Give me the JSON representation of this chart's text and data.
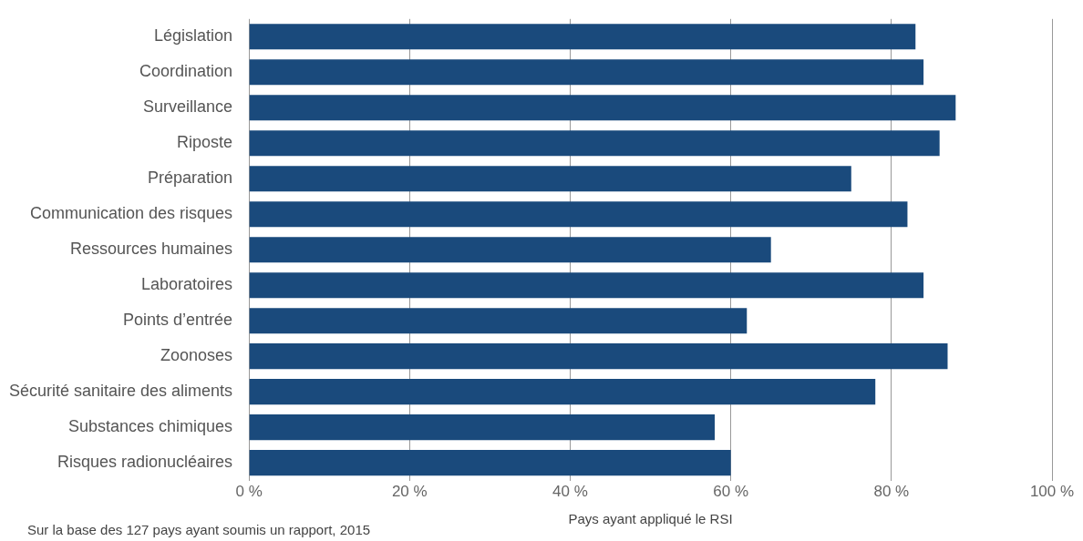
{
  "chart_data": {
    "type": "bar",
    "orientation": "horizontal",
    "categories": [
      "Législation",
      "Coordination",
      "Surveillance",
      "Riposte",
      "Préparation",
      "Communication des risques",
      "Ressources humaines",
      "Laboratoires",
      "Points d’entrée",
      "Zoonoses",
      "Sécurité sanitaire des aliments",
      "Substances chimiques",
      "Risques radionucléaires"
    ],
    "values": [
      83,
      84,
      88,
      86,
      75,
      82,
      65,
      84,
      62,
      87,
      78,
      58,
      60
    ],
    "color": "#1a4a7c",
    "xlim": [
      0,
      100
    ],
    "xticks": [
      {
        "value": 0,
        "label": "0 %"
      },
      {
        "value": 20,
        "label": "20 %"
      },
      {
        "value": 40,
        "label": "40 %"
      },
      {
        "value": 60,
        "label": "60 %"
      },
      {
        "value": 80,
        "label": "80 %"
      },
      {
        "value": 100,
        "label": "100 %"
      }
    ],
    "xlabel": "Pays ayant appliqué le RSI",
    "grid": "x",
    "annotations": [
      "Sur la base des 127 pays ayant soumis un rapport, 2015"
    ]
  }
}
